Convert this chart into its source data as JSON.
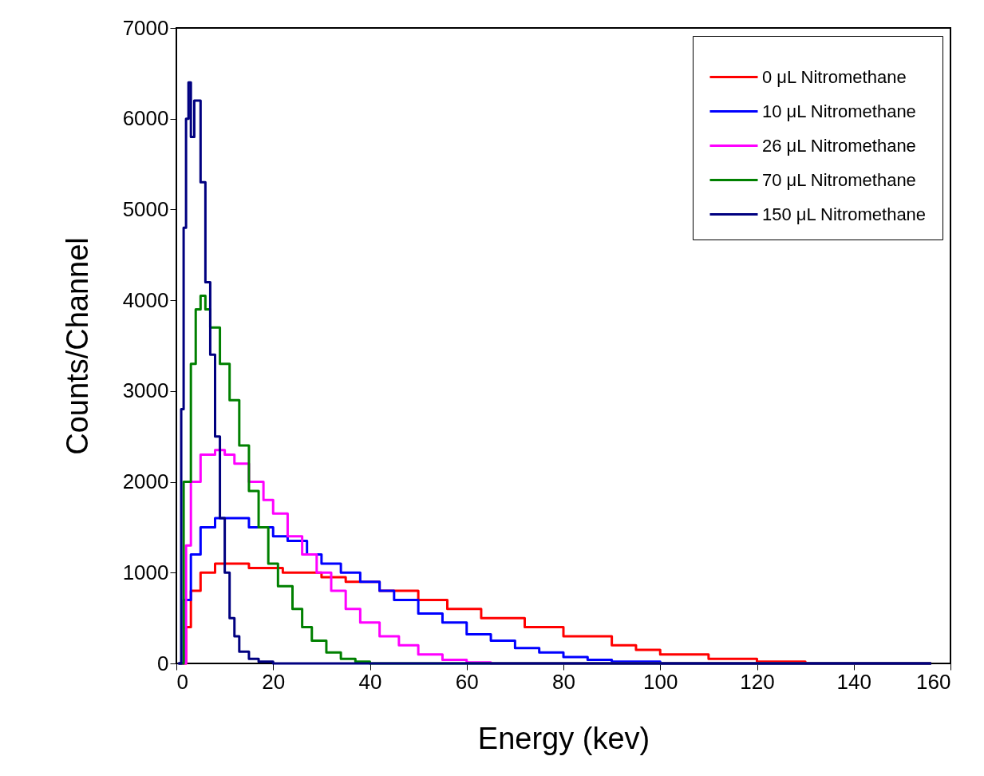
{
  "chart_data": {
    "type": "step",
    "xlabel": "Energy (kev)",
    "ylabel": "Counts/Channel",
    "xlim": [
      0,
      160
    ],
    "ylim": [
      0,
      7000
    ],
    "xticks": [
      0,
      20,
      40,
      60,
      80,
      100,
      120,
      140,
      160
    ],
    "yticks": [
      0,
      1000,
      2000,
      3000,
      4000,
      5000,
      6000,
      7000
    ],
    "grid": false,
    "legend": "top right",
    "marker": "none",
    "line_style": "solid",
    "series": [
      {
        "name": "0 μL Nitromethane",
        "color": "#ff0000",
        "x": [
          0.5,
          2,
          3,
          5,
          8,
          12,
          15,
          22,
          30,
          35,
          42,
          50,
          56,
          63,
          72,
          80,
          90,
          95,
          100,
          110,
          120,
          130,
          140,
          156
        ],
        "values": [
          0,
          400,
          800,
          1000,
          1100,
          1100,
          1050,
          1000,
          950,
          900,
          800,
          700,
          600,
          500,
          400,
          300,
          200,
          150,
          100,
          50,
          20,
          0,
          0,
          0
        ]
      },
      {
        "name": "10 μL Nitromethane",
        "color": "#0000ff",
        "x": [
          0.5,
          1.5,
          3,
          5,
          8,
          12,
          15,
          18,
          20,
          23,
          27,
          30,
          34,
          38,
          42,
          45,
          50,
          55,
          60,
          65,
          70,
          75,
          80,
          85,
          90,
          100,
          110,
          156
        ],
        "values": [
          0,
          700,
          1200,
          1500,
          1600,
          1600,
          1500,
          1500,
          1400,
          1350,
          1200,
          1100,
          1000,
          900,
          800,
          700,
          550,
          450,
          320,
          250,
          170,
          120,
          70,
          40,
          20,
          0,
          0,
          0
        ]
      },
      {
        "name": "26 μL Nitromethane",
        "color": "#ff00ff",
        "x": [
          0.5,
          2,
          3,
          5,
          8,
          10,
          12,
          15,
          18,
          20,
          23,
          26,
          29,
          32,
          35,
          38,
          42,
          46,
          50,
          55,
          60,
          65,
          156
        ],
        "values": [
          0,
          1300,
          2000,
          2300,
          2350,
          2300,
          2200,
          2000,
          1800,
          1650,
          1400,
          1200,
          1000,
          800,
          600,
          450,
          300,
          200,
          100,
          40,
          10,
          0,
          0
        ]
      },
      {
        "name": "70 μL Nitromethane",
        "color": "#008000",
        "x": [
          0.5,
          1.5,
          3,
          4,
          5,
          6,
          7,
          9,
          11,
          13,
          15,
          17,
          19,
          21,
          24,
          26,
          28,
          31,
          34,
          37,
          40,
          156
        ],
        "values": [
          0,
          2000,
          3300,
          3900,
          4050,
          3900,
          3700,
          3300,
          2900,
          2400,
          1900,
          1500,
          1100,
          850,
          600,
          400,
          250,
          120,
          50,
          20,
          0,
          0
        ]
      },
      {
        "name": "150 μL Nitromethane",
        "color": "#000080",
        "x": [
          0.3,
          1,
          1.5,
          2,
          2.5,
          3,
          3.7,
          5,
          6,
          7,
          8,
          9,
          10,
          11,
          12,
          13,
          15,
          17,
          20,
          156
        ],
        "values": [
          0,
          2800,
          4800,
          6000,
          6400,
          5800,
          6200,
          5300,
          4200,
          3400,
          2500,
          1600,
          1000,
          500,
          300,
          130,
          50,
          20,
          0,
          0
        ]
      }
    ]
  }
}
